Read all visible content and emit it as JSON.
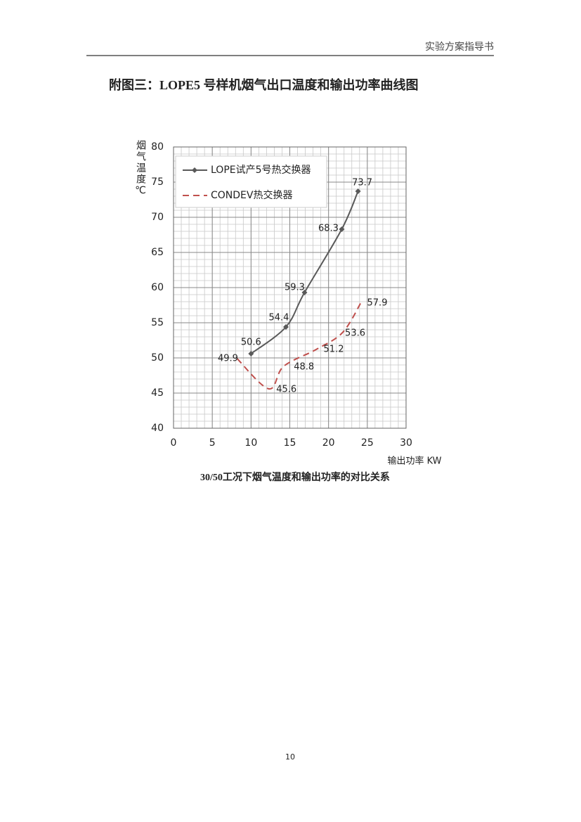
{
  "header": {
    "text": "实验方案指导书"
  },
  "title": "附图三：LOPE5 号样机烟气出口温度和输出功率曲线图",
  "chart_data": {
    "type": "line",
    "xlabel": "输出功率 KW",
    "ylabel": "烟气温度℃",
    "xlim": [
      0,
      30
    ],
    "xticks": [
      0,
      5,
      10,
      15,
      20,
      25,
      30
    ],
    "ylim": [
      40,
      80
    ],
    "yticks": [
      40,
      45,
      50,
      55,
      60,
      65,
      70,
      75,
      80
    ],
    "grid": true,
    "minor_grid": true,
    "legend": "upper left",
    "series": [
      {
        "name": "LOPE试产5号热交换器",
        "color": "#595959",
        "marker": "diamond",
        "dashed": false,
        "x": [
          10,
          14.5,
          16.9,
          21.7,
          23.8
        ],
        "values": [
          50.6,
          54.4,
          59.3,
          68.3,
          73.7
        ]
      },
      {
        "name": "CONDEV热交换器",
        "color": "#c0504d",
        "marker": "none",
        "dashed": true,
        "x": [
          8.2,
          12.3,
          14.2,
          18.4,
          21.8,
          24.2
        ],
        "values": [
          49.9,
          45.6,
          48.8,
          51.2,
          53.6,
          57.9
        ]
      }
    ]
  },
  "caption": "30/50工况下烟气温度和输出功率的对比关系",
  "page_number": "10"
}
